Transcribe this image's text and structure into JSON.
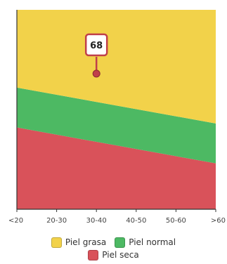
{
  "chart_data": {
    "type": "area",
    "title": "",
    "xlabel": "",
    "ylabel": "",
    "x_ticks": [
      "<20",
      "20-30",
      "30-40",
      "40-50",
      "50-60",
      ">60"
    ],
    "x_range": [
      0,
      5
    ],
    "y_range": [
      0,
      100
    ],
    "series": [
      {
        "name": "Piel seca",
        "color": "#d9525a",
        "upper": [
          41,
          23
        ]
      },
      {
        "name": "Piel normal",
        "color": "#4db963",
        "lower": [
          41,
          23
        ],
        "upper": [
          61,
          43
        ]
      },
      {
        "name": "Piel grasa",
        "color": "#f2d24a",
        "lower": [
          61,
          43
        ],
        "upper": [
          100,
          100
        ]
      }
    ],
    "marker": {
      "x": 2,
      "y": 68,
      "label": "68",
      "color": "#c0404a"
    },
    "legend_rows": [
      [
        "Piel grasa",
        "Piel normal"
      ],
      [
        "Piel seca"
      ]
    ]
  }
}
